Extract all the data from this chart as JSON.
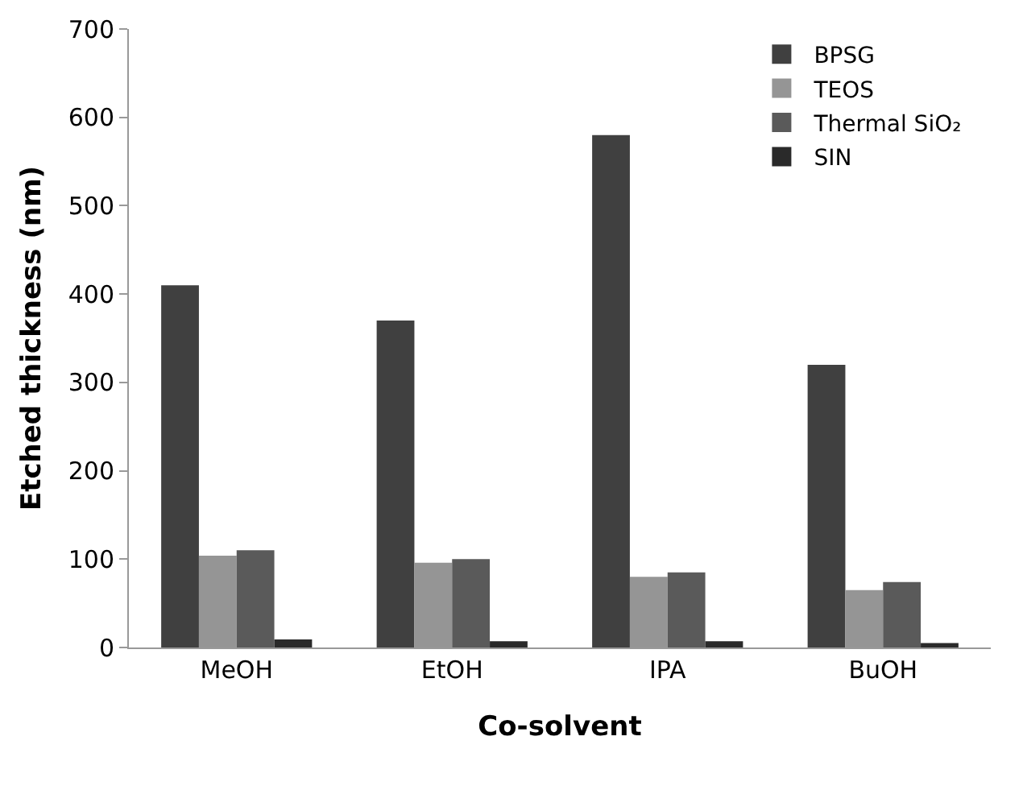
{
  "chart_data": {
    "type": "bar",
    "xlabel": "Co-solvent",
    "ylabel": "Etched thickness (nm)",
    "categories": [
      "MeOH",
      "EtOH",
      "IPA",
      "BuOH"
    ],
    "series": [
      {
        "name": "BPSG",
        "color": "#404040",
        "values": [
          410,
          370,
          580,
          320
        ]
      },
      {
        "name": "TEOS",
        "color": "#959595",
        "values": [
          104,
          96,
          80,
          65
        ]
      },
      {
        "name": "Thermal SiO₂",
        "color": "#5a5a5a",
        "values": [
          110,
          100,
          85,
          74
        ]
      },
      {
        "name": "SIN",
        "color": "#2a2a2a",
        "values": [
          9,
          7,
          7,
          5
        ]
      }
    ],
    "ylim": [
      0,
      700
    ],
    "yticks": [
      0,
      100,
      200,
      300,
      400,
      500,
      600,
      700
    ],
    "grid": false,
    "legend": "top right"
  }
}
